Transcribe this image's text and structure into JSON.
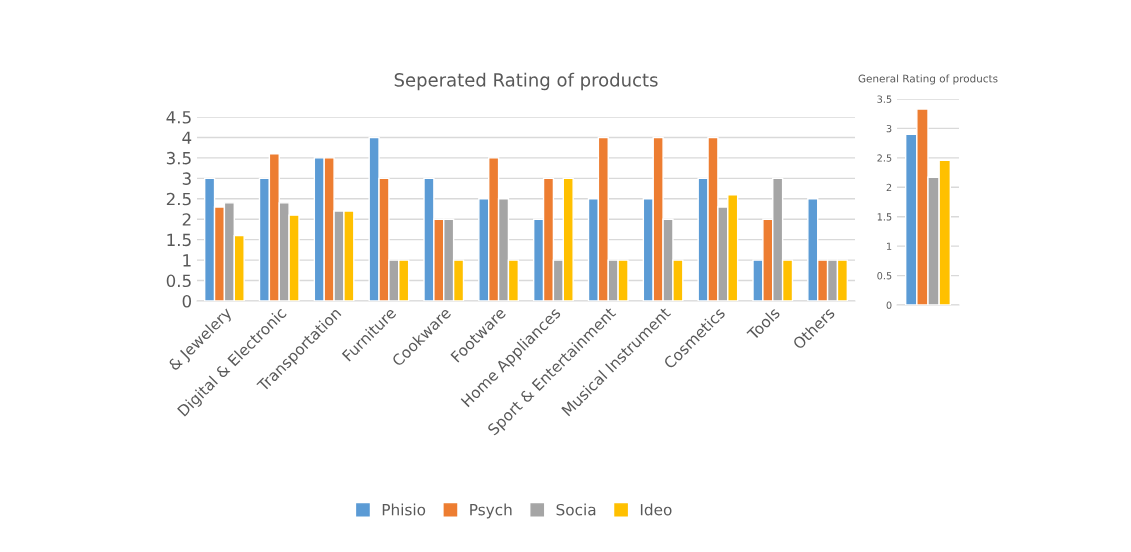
{
  "chart_data": [
    {
      "type": "bar",
      "title": "Seperated Rating of products",
      "categories": [
        "& Jewelery",
        "Digital & Electronic",
        "Transportation",
        "Furniture",
        "Cookware",
        "Footware",
        "Home Appliances",
        "Sport & Entertainment",
        "Musical Instrument",
        "Cosmetics",
        "Tools",
        "Others"
      ],
      "series": [
        {
          "name": "Phisio",
          "color": "#5b9bd5",
          "values": [
            3,
            3,
            3.5,
            4,
            3,
            2.5,
            2,
            2.5,
            2.5,
            3,
            1,
            2.5
          ]
        },
        {
          "name": "Psych",
          "color": "#ed7d31",
          "values": [
            2.3,
            3.6,
            3.5,
            3,
            2,
            3.5,
            3,
            4,
            4,
            4,
            2,
            1
          ]
        },
        {
          "name": "Socia",
          "color": "#a5a5a5",
          "values": [
            2.4,
            2.4,
            2.2,
            1,
            2,
            2.5,
            1,
            1,
            2,
            2.3,
            3,
            1
          ]
        },
        {
          "name": "Ideo",
          "color": "#ffc000",
          "values": [
            1.6,
            2.1,
            2.2,
            1,
            1,
            1,
            3,
            1,
            1,
            2.6,
            1,
            1
          ]
        }
      ],
      "ylim": [
        0,
        4.5
      ],
      "yticks": [
        0,
        0.5,
        1,
        1.5,
        2,
        2.5,
        3,
        3.5,
        4,
        4.5
      ],
      "grid": "y",
      "legend": "bottom"
    },
    {
      "type": "bar",
      "title": "General Rating of products",
      "categories": [
        null
      ],
      "series": [
        {
          "color": "#5b9bd5",
          "values": [
            2.9
          ]
        },
        {
          "color": "#ed7d31",
          "values": [
            3.33
          ]
        },
        {
          "color": "#a5a5a5",
          "values": [
            2.17
          ]
        },
        {
          "color": "#ffc000",
          "values": [
            2.46
          ]
        }
      ],
      "ylim": [
        0,
        3.5
      ],
      "yticks": [
        0,
        0.5,
        1,
        1.5,
        2,
        2.5,
        3,
        3.5
      ],
      "grid": "y"
    }
  ]
}
